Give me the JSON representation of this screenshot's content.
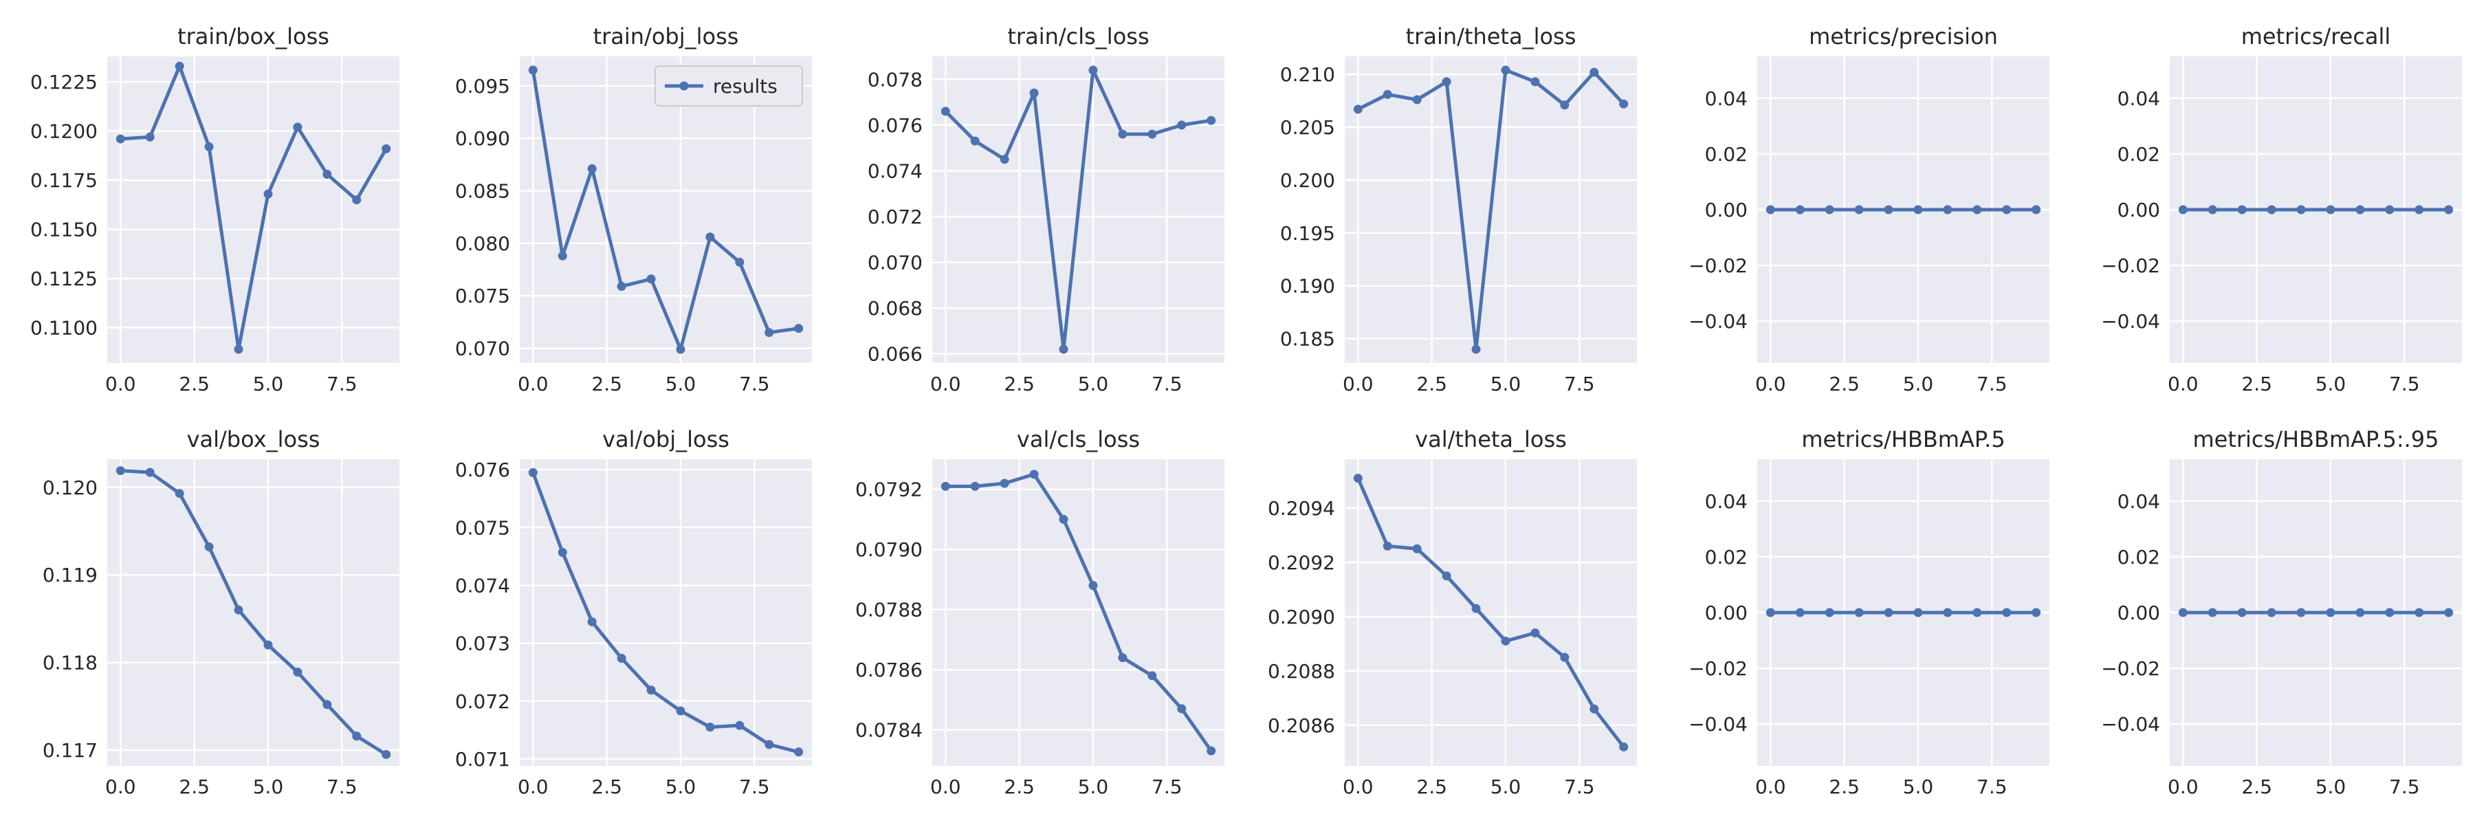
{
  "chart_data": [
    {
      "type": "line",
      "title": "train/box_loss",
      "x": [
        0,
        1,
        2,
        3,
        4,
        5,
        6,
        7,
        8,
        9
      ],
      "series": [
        {
          "values": [
            0.1196,
            0.1197,
            0.1233,
            0.1192,
            0.1089,
            0.1168,
            0.1202,
            0.1178,
            0.1165,
            0.1191
          ]
        }
      ],
      "ylim": [
        0.1082,
        0.1238
      ],
      "xlim": [
        -0.45,
        9.45
      ],
      "yticks": [
        0.11,
        0.1125,
        0.115,
        0.1175,
        0.12,
        0.1225
      ],
      "ytick_labels": [
        "0.1100",
        "0.1125",
        "0.1150",
        "0.1175",
        "0.1200",
        "0.1225"
      ],
      "xticks": [
        0,
        2.5,
        5,
        7.5
      ],
      "xtick_labels": [
        "0.0",
        "2.5",
        "5.0",
        "7.5"
      ],
      "grid": true
    },
    {
      "type": "line",
      "title": "train/obj_loss",
      "x": [
        0,
        1,
        2,
        3,
        4,
        5,
        6,
        7,
        8,
        9
      ],
      "series": [
        {
          "name": "results",
          "values": [
            0.0965,
            0.0788,
            0.0871,
            0.0759,
            0.0766,
            0.0699,
            0.0806,
            0.0782,
            0.0715,
            0.0719
          ]
        }
      ],
      "ylim": [
        0.0686,
        0.0978
      ],
      "xlim": [
        -0.45,
        9.45
      ],
      "yticks": [
        0.07,
        0.075,
        0.08,
        0.085,
        0.09,
        0.095
      ],
      "ytick_labels": [
        "0.070",
        "0.075",
        "0.080",
        "0.085",
        "0.090",
        "0.095"
      ],
      "xticks": [
        0,
        2.5,
        5,
        7.5
      ],
      "xtick_labels": [
        "0.0",
        "2.5",
        "5.0",
        "7.5"
      ],
      "grid": true,
      "legend": "top-right"
    },
    {
      "type": "line",
      "title": "train/cls_loss",
      "x": [
        0,
        1,
        2,
        3,
        4,
        5,
        6,
        7,
        8,
        9
      ],
      "series": [
        {
          "values": [
            0.0766,
            0.0753,
            0.0745,
            0.0774,
            0.0662,
            0.0784,
            0.0756,
            0.0756,
            0.076,
            0.0762
          ]
        }
      ],
      "ylim": [
        0.0656,
        0.079
      ],
      "xlim": [
        -0.45,
        9.45
      ],
      "yticks": [
        0.066,
        0.068,
        0.07,
        0.072,
        0.074,
        0.076,
        0.078
      ],
      "ytick_labels": [
        "0.066",
        "0.068",
        "0.070",
        "0.072",
        "0.074",
        "0.076",
        "0.078"
      ],
      "xticks": [
        0,
        2.5,
        5,
        7.5
      ],
      "xtick_labels": [
        "0.0",
        "2.5",
        "5.0",
        "7.5"
      ],
      "grid": true
    },
    {
      "type": "line",
      "title": "train/theta_loss",
      "x": [
        0,
        1,
        2,
        3,
        4,
        5,
        6,
        7,
        8,
        9
      ],
      "series": [
        {
          "values": [
            0.2067,
            0.2081,
            0.2076,
            0.2093,
            0.184,
            0.2104,
            0.2093,
            0.2071,
            0.2102,
            0.2072
          ]
        }
      ],
      "ylim": [
        0.1827,
        0.2117
      ],
      "xlim": [
        -0.45,
        9.45
      ],
      "yticks": [
        0.185,
        0.19,
        0.195,
        0.2,
        0.205,
        0.21
      ],
      "ytick_labels": [
        "0.185",
        "0.190",
        "0.195",
        "0.200",
        "0.205",
        "0.210"
      ],
      "xticks": [
        0,
        2.5,
        5,
        7.5
      ],
      "xtick_labels": [
        "0.0",
        "2.5",
        "5.0",
        "7.5"
      ],
      "grid": true
    },
    {
      "type": "line",
      "title": "metrics/precision",
      "x": [
        0,
        1,
        2,
        3,
        4,
        5,
        6,
        7,
        8,
        9
      ],
      "series": [
        {
          "values": [
            0,
            0,
            0,
            0,
            0,
            0,
            0,
            0,
            0,
            0
          ]
        }
      ],
      "ylim": [
        -0.055,
        0.055
      ],
      "xlim": [
        -0.45,
        9.45
      ],
      "yticks": [
        -0.04,
        -0.02,
        0,
        0.02,
        0.04
      ],
      "ytick_labels": [
        "−0.04",
        "−0.02",
        "0.00",
        "0.02",
        "0.04"
      ],
      "xticks": [
        0,
        2.5,
        5,
        7.5
      ],
      "xtick_labels": [
        "0.0",
        "2.5",
        "5.0",
        "7.5"
      ],
      "grid": true
    },
    {
      "type": "line",
      "title": "metrics/recall",
      "x": [
        0,
        1,
        2,
        3,
        4,
        5,
        6,
        7,
        8,
        9
      ],
      "series": [
        {
          "values": [
            0,
            0,
            0,
            0,
            0,
            0,
            0,
            0,
            0,
            0
          ]
        }
      ],
      "ylim": [
        -0.055,
        0.055
      ],
      "xlim": [
        -0.45,
        9.45
      ],
      "yticks": [
        -0.04,
        -0.02,
        0,
        0.02,
        0.04
      ],
      "ytick_labels": [
        "−0.04",
        "−0.02",
        "0.00",
        "0.02",
        "0.04"
      ],
      "xticks": [
        0,
        2.5,
        5,
        7.5
      ],
      "xtick_labels": [
        "0.0",
        "2.5",
        "5.0",
        "7.5"
      ],
      "grid": true
    },
    {
      "type": "line",
      "title": "val/box_loss",
      "x": [
        0,
        1,
        2,
        3,
        4,
        5,
        6,
        7,
        8,
        9
      ],
      "series": [
        {
          "values": [
            0.12019,
            0.12017,
            0.11993,
            0.11932,
            0.1186,
            0.1182,
            0.11789,
            0.11752,
            0.11716,
            0.11695
          ]
        }
      ],
      "ylim": [
        0.11682,
        0.12032
      ],
      "xlim": [
        -0.45,
        9.45
      ],
      "yticks": [
        0.117,
        0.118,
        0.119,
        0.12
      ],
      "ytick_labels": [
        "0.117",
        "0.118",
        "0.119",
        "0.120"
      ],
      "xticks": [
        0,
        2.5,
        5,
        7.5
      ],
      "xtick_labels": [
        "0.0",
        "2.5",
        "5.0",
        "7.5"
      ],
      "grid": true
    },
    {
      "type": "line",
      "title": "val/obj_loss",
      "x": [
        0,
        1,
        2,
        3,
        4,
        5,
        6,
        7,
        8,
        9
      ],
      "series": [
        {
          "values": [
            0.07595,
            0.07457,
            0.07337,
            0.07274,
            0.07219,
            0.07183,
            0.07155,
            0.07158,
            0.07125,
            0.07112
          ]
        }
      ],
      "ylim": [
        0.07088,
        0.07618
      ],
      "xlim": [
        -0.45,
        9.45
      ],
      "yticks": [
        0.071,
        0.072,
        0.073,
        0.074,
        0.075,
        0.076
      ],
      "ytick_labels": [
        "0.071",
        "0.072",
        "0.073",
        "0.074",
        "0.075",
        "0.076"
      ],
      "xticks": [
        0,
        2.5,
        5,
        7.5
      ],
      "xtick_labels": [
        "0.0",
        "2.5",
        "5.0",
        "7.5"
      ],
      "grid": true
    },
    {
      "type": "line",
      "title": "val/cls_loss",
      "x": [
        0,
        1,
        2,
        3,
        4,
        5,
        6,
        7,
        8,
        9
      ],
      "series": [
        {
          "values": [
            0.07921,
            0.07921,
            0.07922,
            0.07925,
            0.0791,
            0.07888,
            0.07864,
            0.07858,
            0.07847,
            0.07833
          ]
        }
      ],
      "ylim": [
        0.07828,
        0.0793
      ],
      "xlim": [
        -0.45,
        9.45
      ],
      "yticks": [
        0.0784,
        0.0786,
        0.0788,
        0.079,
        0.0792
      ],
      "ytick_labels": [
        "0.0784",
        "0.0786",
        "0.0788",
        "0.0790",
        "0.0792"
      ],
      "xticks": [
        0,
        2.5,
        5,
        7.5
      ],
      "xtick_labels": [
        "0.0",
        "2.5",
        "5.0",
        "7.5"
      ],
      "grid": true
    },
    {
      "type": "line",
      "title": "val/theta_loss",
      "x": [
        0,
        1,
        2,
        3,
        4,
        5,
        6,
        7,
        8,
        9
      ],
      "series": [
        {
          "values": [
            0.20951,
            0.20926,
            0.20925,
            0.20915,
            0.20903,
            0.20891,
            0.20894,
            0.20885,
            0.20866,
            0.20852
          ]
        }
      ],
      "ylim": [
        0.20845,
        0.20958
      ],
      "xlim": [
        -0.45,
        9.45
      ],
      "yticks": [
        0.2086,
        0.2088,
        0.209,
        0.2092,
        0.2094
      ],
      "ytick_labels": [
        "0.2086",
        "0.2088",
        "0.2090",
        "0.2092",
        "0.2094"
      ],
      "xticks": [
        0,
        2.5,
        5,
        7.5
      ],
      "xtick_labels": [
        "0.0",
        "2.5",
        "5.0",
        "7.5"
      ],
      "grid": true
    },
    {
      "type": "line",
      "title": "metrics/HBBmAP.5",
      "x": [
        0,
        1,
        2,
        3,
        4,
        5,
        6,
        7,
        8,
        9
      ],
      "series": [
        {
          "values": [
            0,
            0,
            0,
            0,
            0,
            0,
            0,
            0,
            0,
            0
          ]
        }
      ],
      "ylim": [
        -0.055,
        0.055
      ],
      "xlim": [
        -0.45,
        9.45
      ],
      "yticks": [
        -0.04,
        -0.02,
        0,
        0.02,
        0.04
      ],
      "ytick_labels": [
        "−0.04",
        "−0.02",
        "0.00",
        "0.02",
        "0.04"
      ],
      "xticks": [
        0,
        2.5,
        5,
        7.5
      ],
      "xtick_labels": [
        "0.0",
        "2.5",
        "5.0",
        "7.5"
      ],
      "grid": true
    },
    {
      "type": "line",
      "title": "metrics/HBBmAP.5:.95",
      "x": [
        0,
        1,
        2,
        3,
        4,
        5,
        6,
        7,
        8,
        9
      ],
      "series": [
        {
          "values": [
            0,
            0,
            0,
            0,
            0,
            0,
            0,
            0,
            0,
            0
          ]
        }
      ],
      "ylim": [
        -0.055,
        0.055
      ],
      "xlim": [
        -0.45,
        9.45
      ],
      "yticks": [
        -0.04,
        -0.02,
        0,
        0.02,
        0.04
      ],
      "ytick_labels": [
        "−0.04",
        "−0.02",
        "0.00",
        "0.02",
        "0.04"
      ],
      "xticks": [
        0,
        2.5,
        5,
        7.5
      ],
      "xtick_labels": [
        "0.0",
        "2.5",
        "5.0",
        "7.5"
      ],
      "grid": true
    }
  ],
  "legend_label": "results",
  "colors": {
    "line": "#4c72b0",
    "axes_bg": "#eaeaf2",
    "grid": "#ffffff",
    "text": "#262626"
  }
}
